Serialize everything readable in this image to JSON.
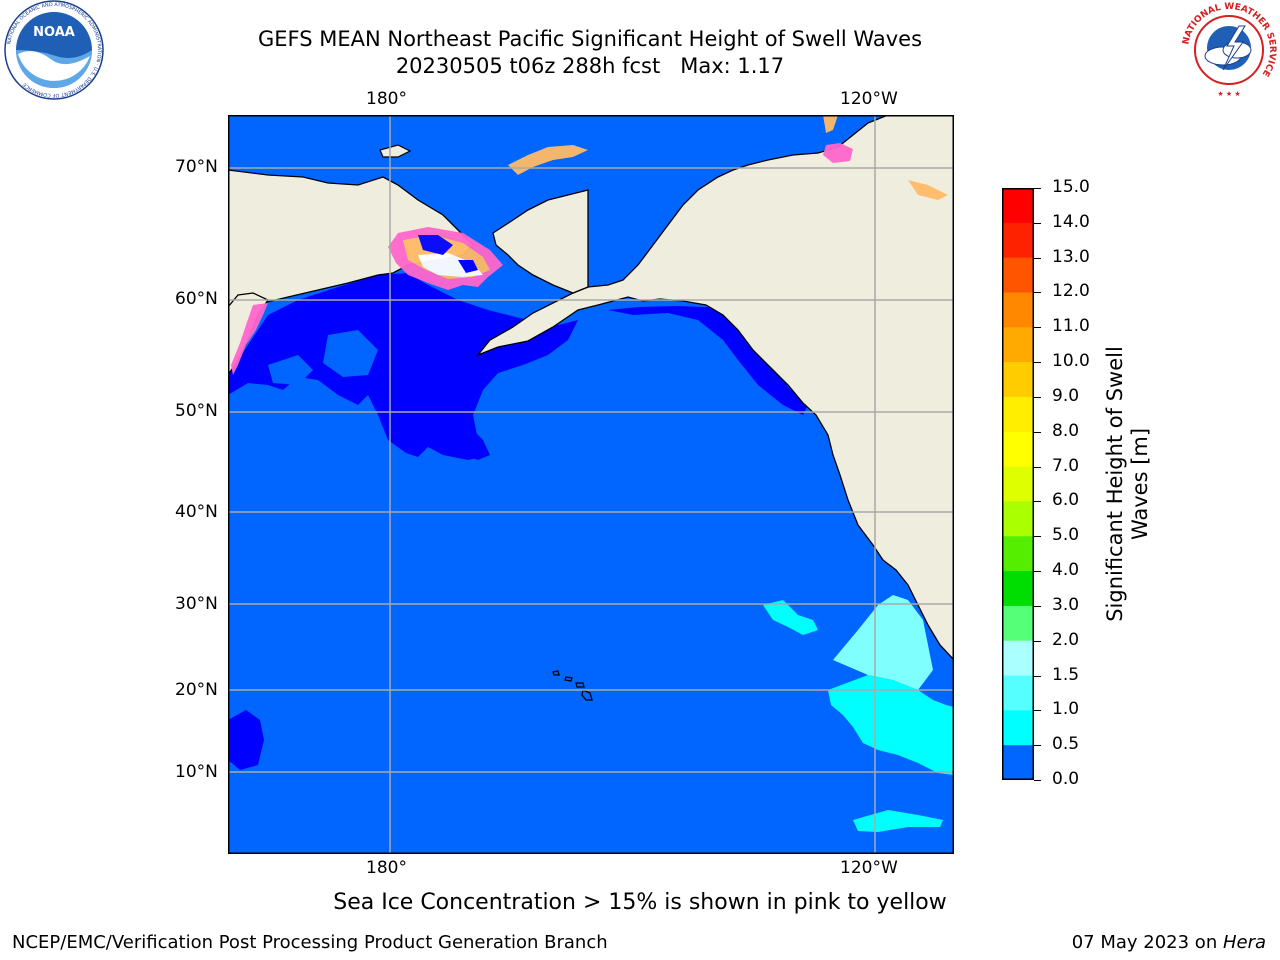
{
  "title": {
    "line1": "GEFS MEAN Northeast Pacific Significant Height of Swell Waves",
    "line2": "20230505 t06z 288h fcst   Max: 1.17"
  },
  "logos": {
    "left": {
      "icon": "noaa-logo-icon",
      "text": "NOAA",
      "ring_text": "NATIONAL OCEANIC AND ATMOSPHERIC ADMINISTRATION · U.S. DEPARTMENT OF COMMERCE"
    },
    "right": {
      "icon": "nws-logo-icon",
      "ring_text": "NATIONAL WEATHER SERVICE"
    }
  },
  "map": {
    "region": "Northeast Pacific",
    "lon_labels_top": [
      "180°",
      "120°W"
    ],
    "lon_labels_bottom": [
      "180°",
      "120°W"
    ],
    "lat_labels": [
      "70°N",
      "60°N",
      "50°N",
      "40°N",
      "30°N",
      "20°N",
      "10°N"
    ],
    "colors": {
      "land": "#efedde",
      "ocean": "#0066ff",
      "low_swell": "#0000ff",
      "cyan_swell": "#00ffff",
      "light_cyan": "#80ffff",
      "sea_ice_pink": "#ff66cc",
      "sea_ice_orange": "#ffbb66",
      "grid": "#aaaaaa"
    }
  },
  "colorbar": {
    "label_line1": "Significant Height of Swell",
    "label_line2": "Waves [m]",
    "ticks": [
      "15.0",
      "14.0",
      "13.0",
      "12.0",
      "11.0",
      "10.0",
      "9.0",
      "8.0",
      "7.0",
      "6.0",
      "5.0",
      "4.0",
      "3.0",
      "2.0",
      "1.5",
      "1.0",
      "0.5",
      "0.0"
    ],
    "colors": [
      "#ff0000",
      "#ff2200",
      "#ff5500",
      "#ff8800",
      "#ffaa00",
      "#ffcc00",
      "#ffee00",
      "#ffff00",
      "#ddff00",
      "#aaff00",
      "#55ee00",
      "#00dd00",
      "#55ff77",
      "#aaffff",
      "#55ffff",
      "#00ffff",
      "#0066ff",
      "#0000ff"
    ]
  },
  "note": "Sea Ice Concentration > 15% is shown in pink to yellow",
  "footer": {
    "left": "NCEP/EMC/Verification Post Processing Product Generation Branch",
    "right_date": "07 May 2023 on ",
    "right_host": "Hera"
  }
}
